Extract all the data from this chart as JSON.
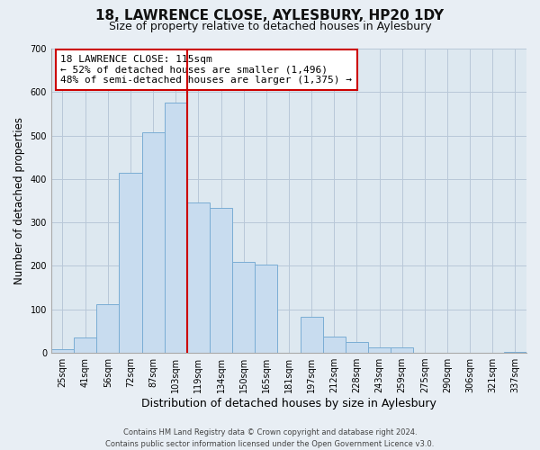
{
  "title": "18, LAWRENCE CLOSE, AYLESBURY, HP20 1DY",
  "subtitle": "Size of property relative to detached houses in Aylesbury",
  "xlabel": "Distribution of detached houses by size in Aylesbury",
  "ylabel": "Number of detached properties",
  "categories": [
    "25sqm",
    "41sqm",
    "56sqm",
    "72sqm",
    "87sqm",
    "103sqm",
    "119sqm",
    "134sqm",
    "150sqm",
    "165sqm",
    "181sqm",
    "197sqm",
    "212sqm",
    "228sqm",
    "243sqm",
    "259sqm",
    "275sqm",
    "290sqm",
    "306sqm",
    "321sqm",
    "337sqm"
  ],
  "values": [
    8,
    35,
    112,
    415,
    508,
    575,
    345,
    333,
    210,
    203,
    0,
    83,
    37,
    25,
    12,
    12,
    0,
    0,
    0,
    0,
    3
  ],
  "bar_color": "#c8dcef",
  "bar_edge_color": "#7aadd4",
  "vline_color": "#cc0000",
  "vline_x": 5.5,
  "annotation_text": "18 LAWRENCE CLOSE: 115sqm\n← 52% of detached houses are smaller (1,496)\n48% of semi-detached houses are larger (1,375) →",
  "annotation_box_color": "#ffffff",
  "annotation_box_edge_color": "#cc0000",
  "ylim": [
    0,
    700
  ],
  "yticks": [
    0,
    100,
    200,
    300,
    400,
    500,
    600,
    700
  ],
  "footer": "Contains HM Land Registry data © Crown copyright and database right 2024.\nContains public sector information licensed under the Open Government Licence v3.0.",
  "bg_color": "#e8eef4",
  "plot_bg_color": "#dde8f0",
  "grid_color": "#b8c8d8",
  "title_fontsize": 11,
  "subtitle_fontsize": 9,
  "xlabel_fontsize": 9,
  "ylabel_fontsize": 8.5,
  "tick_fontsize": 7,
  "annotation_fontsize": 8,
  "footer_fontsize": 6
}
